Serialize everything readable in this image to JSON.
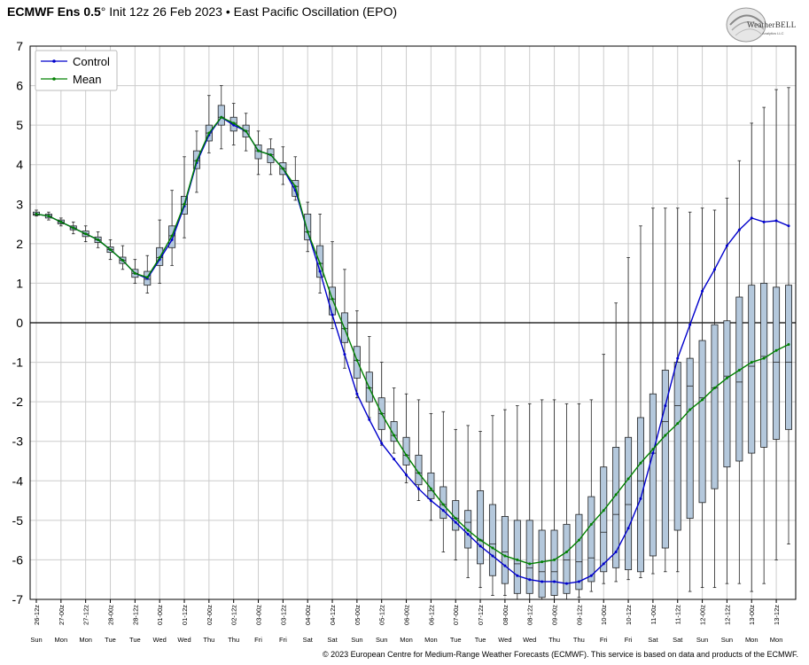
{
  "title": {
    "model": "ECMWF Ens 0.5",
    "degree": "°",
    "rest": " Init 12z 26 Feb 2023 • East Pacific Oscillation (EPO)"
  },
  "logo": {
    "name": "WeatherBELL",
    "tagline": "Analytics LLC"
  },
  "footer": "© 2023 European Centre for Medium-Range Weather Forecasts (ECMWF). This service is based on data and products of the ECMWF.",
  "colors": {
    "control": "#0000cc",
    "mean": "#008000",
    "box_fill": "#b4c8dc",
    "grid": "#cccccc",
    "zero_line": "#000000"
  },
  "chart_data": {
    "type": "box-and-line",
    "ylim": [
      -7,
      7
    ],
    "yticks": [
      7,
      6,
      5,
      4,
      3,
      2,
      1,
      0,
      -1,
      -2,
      -3,
      -4,
      -5,
      -6,
      -7
    ],
    "grid": true,
    "legend_position": "top-left",
    "legend": [
      "Control",
      "Mean"
    ],
    "x_labels": [
      "26-12z",
      "27-00z",
      "27-12z",
      "28-00z",
      "28-12z",
      "01-00z",
      "01-12z",
      "02-00z",
      "02-12z",
      "03-00z",
      "03-12z",
      "04-00z",
      "04-12z",
      "05-00z",
      "05-12z",
      "06-00z",
      "06-12z",
      "07-00z",
      "07-12z",
      "08-00z",
      "08-12z",
      "09-00z",
      "09-12z",
      "10-00z",
      "10-12z",
      "11-00z",
      "11-12z",
      "12-00z",
      "12-12z",
      "13-00z",
      "13-12z"
    ],
    "x_days": [
      "Sun",
      "Mon",
      "Mon",
      "Tue",
      "Tue",
      "Wed",
      "Wed",
      "Thu",
      "Thu",
      "Fri",
      "Fri",
      "Sat",
      "Sat",
      "Sun",
      "Sun",
      "Mon",
      "Mon",
      "Tue",
      "Tue",
      "Wed",
      "Wed",
      "Thu",
      "Thu",
      "Fri",
      "Fri",
      "Sat",
      "Sat",
      "Sun",
      "Sun",
      "Mon",
      "Mon"
    ],
    "series": [
      {
        "name": "Control",
        "values": [
          2.75,
          2.7,
          2.55,
          2.4,
          2.25,
          2.1,
          1.85,
          1.58,
          1.25,
          1.12,
          1.6,
          2.1,
          2.95,
          4.05,
          4.75,
          5.2,
          5.0,
          4.85,
          4.35,
          4.25,
          3.9,
          3.35,
          2.3,
          1.3,
          0.2,
          -0.8,
          -1.8,
          -2.45,
          -3.05,
          -3.45,
          -3.85,
          -4.2,
          -4.5,
          -4.75,
          -5.05,
          -5.35,
          -5.65,
          -5.9,
          -6.15,
          -6.4,
          -6.5,
          -6.55,
          -6.55,
          -6.6,
          -6.55,
          -6.4,
          -6.1,
          -5.8,
          -5.2,
          -4.45,
          -3.3,
          -2.1,
          -0.9,
          -0.05,
          0.8,
          1.35,
          1.95,
          2.35,
          2.65,
          2.55,
          2.58,
          2.45
        ]
      },
      {
        "name": "Mean",
        "values": [
          2.75,
          2.7,
          2.55,
          2.4,
          2.25,
          2.1,
          1.85,
          1.58,
          1.25,
          1.15,
          1.65,
          2.2,
          3.0,
          4.1,
          4.8,
          5.2,
          5.05,
          4.85,
          4.35,
          4.25,
          3.9,
          3.45,
          2.3,
          1.5,
          0.6,
          -0.15,
          -0.95,
          -1.65,
          -2.3,
          -2.85,
          -3.35,
          -3.8,
          -4.2,
          -4.6,
          -4.95,
          -5.25,
          -5.5,
          -5.7,
          -5.9,
          -6.0,
          -6.1,
          -6.05,
          -6.0,
          -5.8,
          -5.5,
          -5.1,
          -4.75,
          -4.35,
          -3.95,
          -3.55,
          -3.2,
          -2.85,
          -2.55,
          -2.2,
          -1.95,
          -1.65,
          -1.4,
          -1.2,
          -1.0,
          -0.9,
          -0.7,
          -0.55
        ]
      }
    ],
    "boxes": [
      {
        "min": 2.7,
        "q1": 2.72,
        "med": 2.75,
        "q3": 2.8,
        "max": 2.85
      },
      {
        "min": 2.6,
        "q1": 2.65,
        "med": 2.7,
        "q3": 2.75,
        "max": 2.8
      },
      {
        "min": 2.45,
        "q1": 2.5,
        "med": 2.55,
        "q3": 2.6,
        "max": 2.65
      },
      {
        "min": 2.25,
        "q1": 2.35,
        "med": 2.4,
        "q3": 2.45,
        "max": 2.55
      },
      {
        "min": 2.05,
        "q1": 2.18,
        "med": 2.25,
        "q3": 2.32,
        "max": 2.45
      },
      {
        "min": 1.9,
        "q1": 2.03,
        "med": 2.1,
        "q3": 2.17,
        "max": 2.3
      },
      {
        "min": 1.6,
        "q1": 1.78,
        "med": 1.85,
        "q3": 1.92,
        "max": 2.1
      },
      {
        "min": 1.35,
        "q1": 1.5,
        "med": 1.58,
        "q3": 1.66,
        "max": 1.95
      },
      {
        "min": 1.0,
        "q1": 1.15,
        "med": 1.25,
        "q3": 1.35,
        "max": 1.6
      },
      {
        "min": 0.75,
        "q1": 0.95,
        "med": 1.1,
        "q3": 1.3,
        "max": 1.7
      },
      {
        "min": 1.0,
        "q1": 1.45,
        "med": 1.65,
        "q3": 1.9,
        "max": 2.6
      },
      {
        "min": 1.45,
        "q1": 1.9,
        "med": 2.2,
        "q3": 2.45,
        "max": 3.35
      },
      {
        "min": 2.15,
        "q1": 2.75,
        "med": 3.0,
        "q3": 3.2,
        "max": 4.2
      },
      {
        "min": 3.3,
        "q1": 3.9,
        "med": 4.1,
        "q3": 4.35,
        "max": 4.85
      },
      {
        "min": 4.3,
        "q1": 4.6,
        "med": 4.8,
        "q3": 5.0,
        "max": 5.75
      },
      {
        "min": 4.4,
        "q1": 5.0,
        "med": 5.2,
        "q3": 5.5,
        "max": 6.0
      },
      {
        "min": 4.5,
        "q1": 4.85,
        "med": 5.05,
        "q3": 5.2,
        "max": 5.55
      },
      {
        "min": 4.35,
        "q1": 4.7,
        "med": 4.85,
        "q3": 5.0,
        "max": 5.3
      },
      {
        "min": 3.75,
        "q1": 4.15,
        "med": 4.35,
        "q3": 4.5,
        "max": 4.85
      },
      {
        "min": 3.75,
        "q1": 4.05,
        "med": 4.25,
        "q3": 4.4,
        "max": 4.65
      },
      {
        "min": 3.5,
        "q1": 3.75,
        "med": 3.9,
        "q3": 4.05,
        "max": 4.45
      },
      {
        "min": 3.1,
        "q1": 3.2,
        "med": 3.45,
        "q3": 3.6,
        "max": 4.2
      },
      {
        "min": 1.8,
        "q1": 2.1,
        "med": 2.3,
        "q3": 2.75,
        "max": 3.05
      },
      {
        "min": 0.75,
        "q1": 1.15,
        "med": 1.5,
        "q3": 1.95,
        "max": 2.75
      },
      {
        "min": -0.15,
        "q1": 0.2,
        "med": 0.6,
        "q3": 0.9,
        "max": 2.05
      },
      {
        "min": -1.15,
        "q1": -0.5,
        "med": -0.15,
        "q3": 0.25,
        "max": 1.35
      },
      {
        "min": -1.9,
        "q1": -1.4,
        "med": -0.95,
        "q3": -0.6,
        "max": 0.3
      },
      {
        "min": -2.4,
        "q1": -2.0,
        "med": -1.65,
        "q3": -1.25,
        "max": -0.35
      },
      {
        "min": -3.1,
        "q1": -2.7,
        "med": -2.3,
        "q3": -1.9,
        "max": -1.0
      },
      {
        "min": -3.3,
        "q1": -3.0,
        "med": -2.85,
        "q3": -2.5,
        "max": -1.65
      },
      {
        "min": -4.05,
        "q1": -3.6,
        "med": -3.35,
        "q3": -2.9,
        "max": -1.8
      },
      {
        "min": -4.5,
        "q1": -4.1,
        "med": -3.8,
        "q3": -3.35,
        "max": -1.95
      },
      {
        "min": -5.0,
        "q1": -4.45,
        "med": -4.25,
        "q3": -3.8,
        "max": -2.3
      },
      {
        "min": -5.8,
        "q1": -4.95,
        "med": -4.6,
        "q3": -4.15,
        "max": -2.25
      },
      {
        "min": -6.0,
        "q1": -5.25,
        "med": -4.95,
        "q3": -4.5,
        "max": -2.7
      },
      {
        "min": -6.45,
        "q1": -5.7,
        "med": -5.05,
        "q3": -4.75,
        "max": -2.6
      },
      {
        "min": -6.7,
        "q1": -6.1,
        "med": -5.5,
        "q3": -4.25,
        "max": -2.75
      },
      {
        "min": -6.9,
        "q1": -6.4,
        "med": -5.6,
        "q3": -4.6,
        "max": -2.35
      },
      {
        "min": -6.9,
        "q1": -6.6,
        "med": -5.8,
        "q3": -4.9,
        "max": -2.2
      },
      {
        "min": -7.0,
        "q1": -6.85,
        "med": -6.1,
        "q3": -5.0,
        "max": -2.1
      },
      {
        "min": -7.0,
        "q1": -6.85,
        "med": -6.2,
        "q3": -5.0,
        "max": -2.05
      },
      {
        "min": -7.0,
        "q1": -6.95,
        "med": -6.3,
        "q3": -5.25,
        "max": -1.95
      },
      {
        "min": -7.0,
        "q1": -6.9,
        "med": -6.3,
        "q3": -5.25,
        "max": -1.95
      },
      {
        "min": -7.0,
        "q1": -6.85,
        "med": -6.0,
        "q3": -5.1,
        "max": -2.05
      },
      {
        "min": -6.95,
        "q1": -6.75,
        "med": -6.05,
        "q3": -4.85,
        "max": -2.05
      },
      {
        "min": -6.8,
        "q1": -6.55,
        "med": -5.95,
        "q3": -4.4,
        "max": -1.95
      },
      {
        "min": -6.6,
        "q1": -6.3,
        "med": -5.3,
        "q3": -3.65,
        "max": -0.8
      },
      {
        "min": -6.55,
        "q1": -6.2,
        "med": -4.85,
        "q3": -3.15,
        "max": 0.5
      },
      {
        "min": -6.5,
        "q1": -6.25,
        "med": -4.6,
        "q3": -2.9,
        "max": 1.65
      },
      {
        "min": -6.45,
        "q1": -6.3,
        "med": -4.0,
        "q3": -2.4,
        "max": 2.45
      },
      {
        "min": -6.35,
        "q1": -5.9,
        "med": -3.3,
        "q3": -1.8,
        "max": 2.9
      },
      {
        "min": -6.3,
        "q1": -5.7,
        "med": -2.5,
        "q3": -1.2,
        "max": 2.9
      },
      {
        "min": -6.3,
        "q1": -5.25,
        "med": -2.1,
        "q3": -1.0,
        "max": 2.9
      },
      {
        "min": -6.8,
        "q1": -4.95,
        "med": -1.6,
        "q3": -0.9,
        "max": 2.8
      },
      {
        "min": -6.7,
        "q1": -4.55,
        "med": -1.9,
        "q3": -0.45,
        "max": 2.9
      },
      {
        "min": -6.7,
        "q1": -4.2,
        "med": -1.65,
        "q3": -0.05,
        "max": 2.85
      },
      {
        "min": -6.6,
        "q1": -3.65,
        "med": -1.35,
        "q3": 0.05,
        "max": 3.15
      },
      {
        "min": -6.6,
        "q1": -3.5,
        "med": -1.5,
        "q3": 0.65,
        "max": 4.1
      },
      {
        "min": -6.8,
        "q1": -3.3,
        "med": -1.1,
        "q3": 0.95,
        "max": 5.05
      },
      {
        "min": -6.6,
        "q1": -3.15,
        "med": -0.85,
        "q3": 1.0,
        "max": 5.45
      },
      {
        "min": -6.0,
        "q1": -2.95,
        "med": -1.0,
        "q3": 0.9,
        "max": 5.9
      },
      {
        "min": -5.6,
        "q1": -2.7,
        "med": -1.0,
        "q3": 0.95,
        "max": 5.95
      }
    ]
  }
}
